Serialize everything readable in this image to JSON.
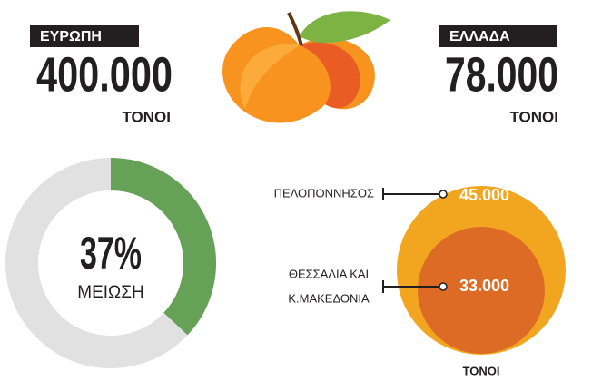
{
  "europe": {
    "label": "ΕΥΡΩΠΗ",
    "amount": "400.000",
    "unit": "ΤΟΝΟΙ"
  },
  "greece": {
    "label": "ΕΛΛΑΔΑ",
    "amount": "78.000",
    "unit": "ΤΟΝΟΙ"
  },
  "reduction": {
    "value": 37,
    "label": "37%",
    "caption": "ΜΕΙΩΣΗ"
  },
  "regions": [
    {
      "name": [
        "ΠΕΛΟΠΟΝΝΗΣΟΣ"
      ],
      "amount": "45.000"
    },
    {
      "name": [
        "ΘΕΣΣΑΛΙΑ ΚΑΙ",
        "Κ.ΜΑΚΕΔΟΝΙΑ"
      ],
      "amount": "33.000"
    }
  ],
  "regions_unit": "ΤΟΝΟΙ"
}
